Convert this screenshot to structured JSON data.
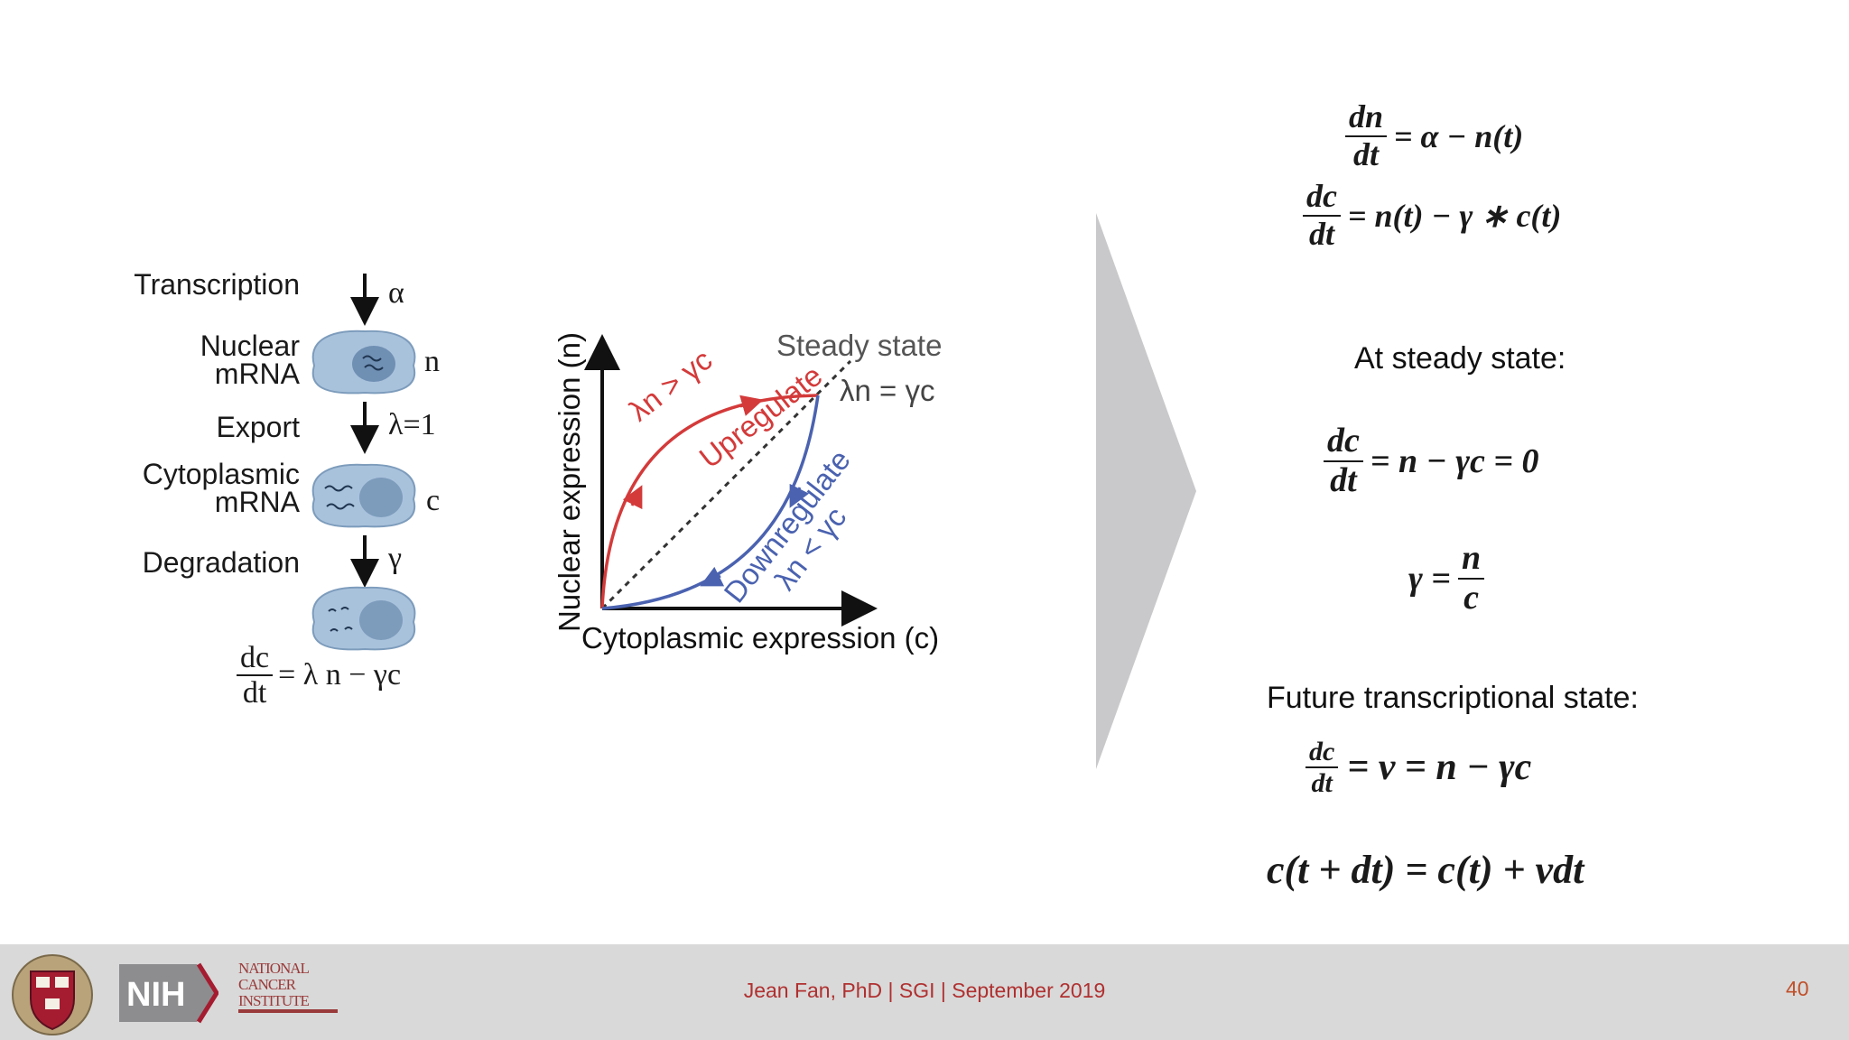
{
  "pathway": {
    "steps": [
      {
        "label": "Transcription",
        "symbol": "α"
      },
      {
        "label": "Nuclear\nmRNA",
        "symbol": "n"
      },
      {
        "label": "Export",
        "symbol": "λ=1"
      },
      {
        "label": "Cytoplasmic\nmRNA",
        "symbol": "c"
      },
      {
        "label": "Degradation",
        "symbol": "γ"
      }
    ],
    "equation": {
      "numerator": "dc",
      "denominator": "dt",
      "rhs": "= λ n − γc"
    }
  },
  "phase_plot": {
    "y_axis_label": "Nuclear expression (n)",
    "x_axis_label": "Cytoplasmic expression (c)",
    "steady_state_label": "Steady state",
    "steady_state_eq": "λn = γc",
    "upregulate_label": "Upregulate",
    "upregulate_condition": "λn > γc",
    "downregulate_label": "Downregulate",
    "downregulate_condition": "λn < γc",
    "colors": {
      "up": "#d43a3a",
      "down": "#4a62b0",
      "axis": "#111111",
      "diagonal": "#333333"
    }
  },
  "equations": {
    "eq1": {
      "numerator": "dn",
      "denominator": "dt",
      "rhs": "= α − n(t)"
    },
    "eq2": {
      "numerator": "dc",
      "denominator": "dt",
      "rhs": "= n(t) − γ ∗ c(t)"
    },
    "steady_heading": "At steady state:",
    "eq3": {
      "numerator": "dc",
      "denominator": "dt",
      "rhs": "= n − γc = 0"
    },
    "eq4": {
      "lhs": "γ =",
      "numerator": "n",
      "denominator": "c"
    },
    "future_heading": "Future transcriptional state:",
    "eq5": {
      "numerator": "dc",
      "denominator": "dt",
      "rhs": "= v = n − γc"
    },
    "eq6": "c(t + dt) = c(t) + vdt"
  },
  "footer": {
    "logos": {
      "harvard": "VE RI TAS",
      "nih": "NIH",
      "nci": "NATIONAL CANCER INSTITUTE"
    },
    "credit": "Jean Fan, PhD | SGI | September 2019",
    "page_number": "40",
    "accent": "#c0392b"
  }
}
